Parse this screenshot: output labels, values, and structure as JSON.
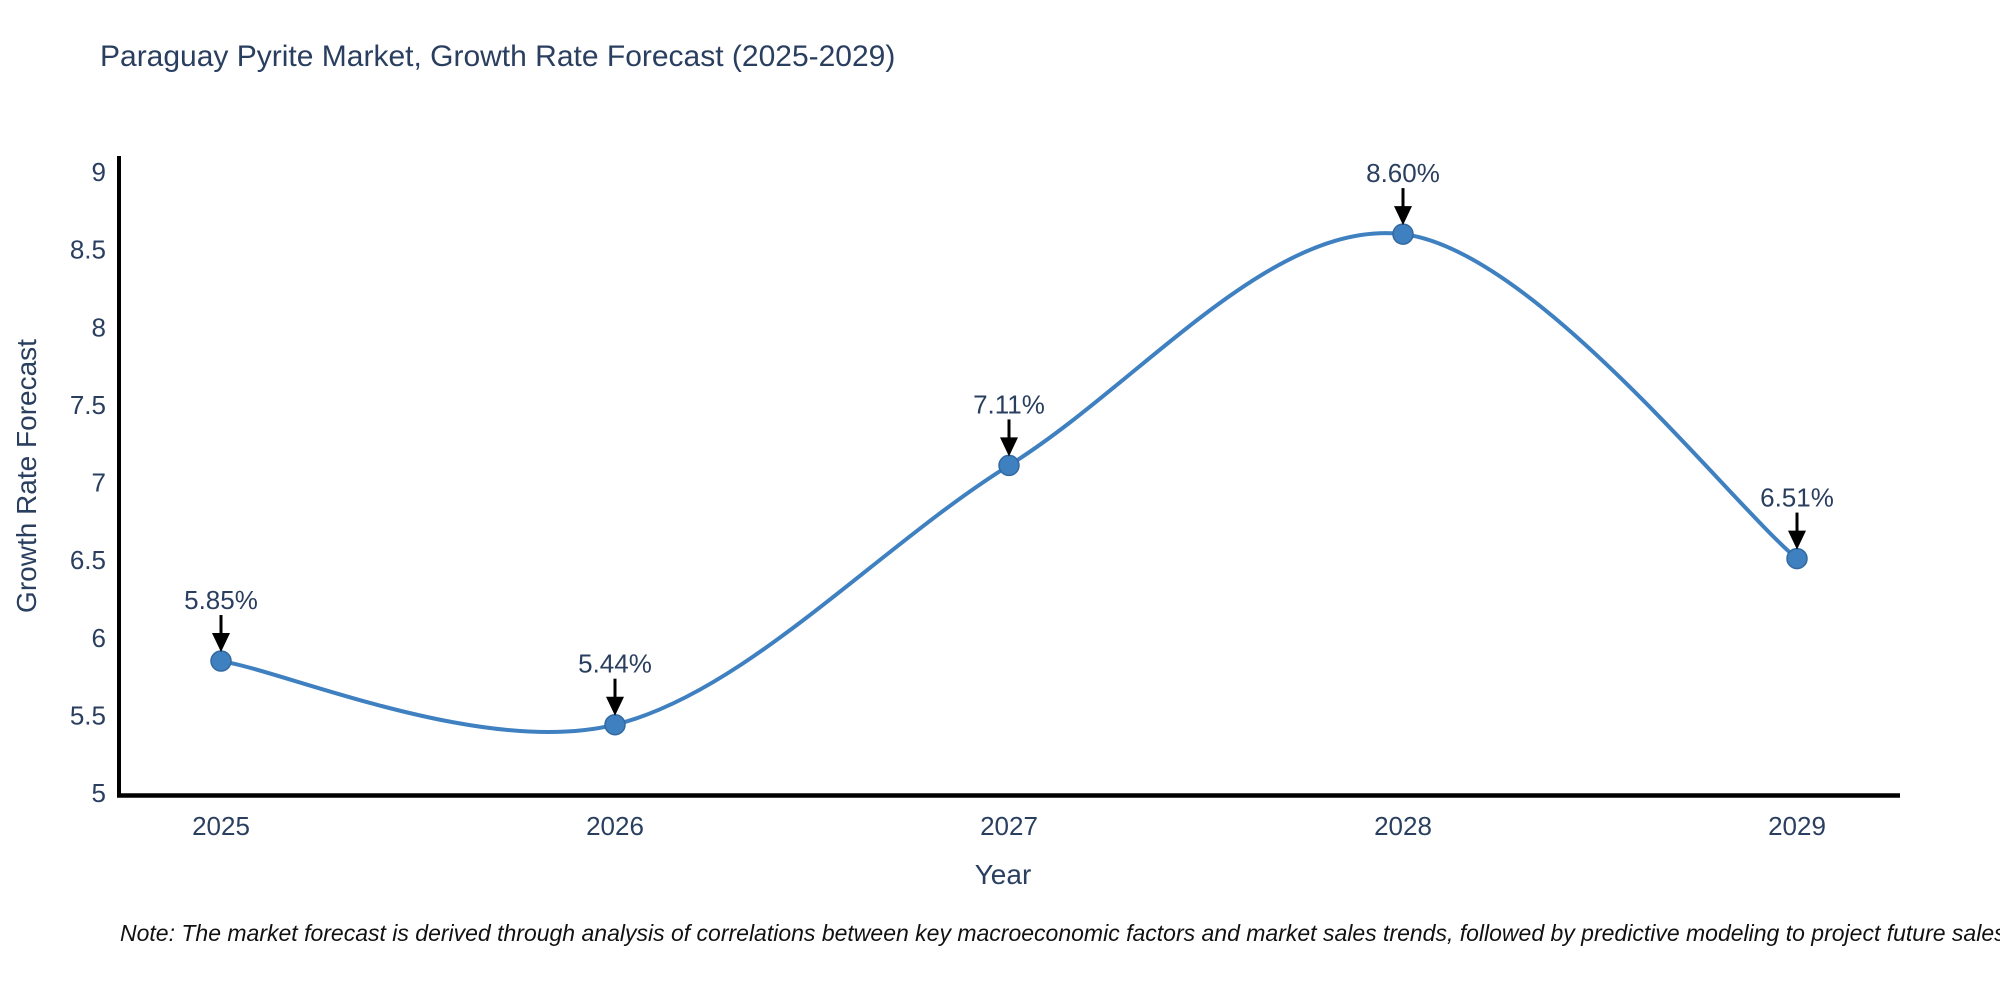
{
  "page": {
    "background": "#ffffff"
  },
  "chart_data": {
    "type": "line",
    "title": "Paraguay Pyrite Market, Growth Rate Forecast (2025-2029)",
    "xlabel": "Year",
    "ylabel": "Growth Rate Forecast",
    "categories": [
      "2025",
      "2026",
      "2027",
      "2028",
      "2029"
    ],
    "series": [
      {
        "name": "Growth Rate Forecast",
        "values": [
          5.85,
          5.44,
          7.11,
          8.6,
          6.51
        ]
      }
    ],
    "point_labels": [
      "5.85%",
      "5.44%",
      "7.11%",
      "8.60%",
      "6.51%"
    ],
    "ylim": [
      5,
      9
    ],
    "ytick_values": [
      5,
      5.5,
      6,
      6.5,
      7,
      7.5,
      8,
      8.5,
      9
    ],
    "ytick_labels": [
      "5",
      "5.5",
      "6",
      "6.5",
      "7",
      "7.5",
      "8",
      "8.5",
      "9"
    ],
    "grid": false,
    "legend": false,
    "line_shape": "spline",
    "colors": {
      "line": "#3f80c1",
      "marker": "#3f80c1",
      "marker_edge": "#34699f",
      "text": "#2a3f5f",
      "axis": "#000000",
      "annotation": "#000000"
    }
  },
  "note": "Note: The market forecast is derived through analysis of correlations between key macroeconomic factors and market sales trends, followed by predictive modeling to project future sales"
}
